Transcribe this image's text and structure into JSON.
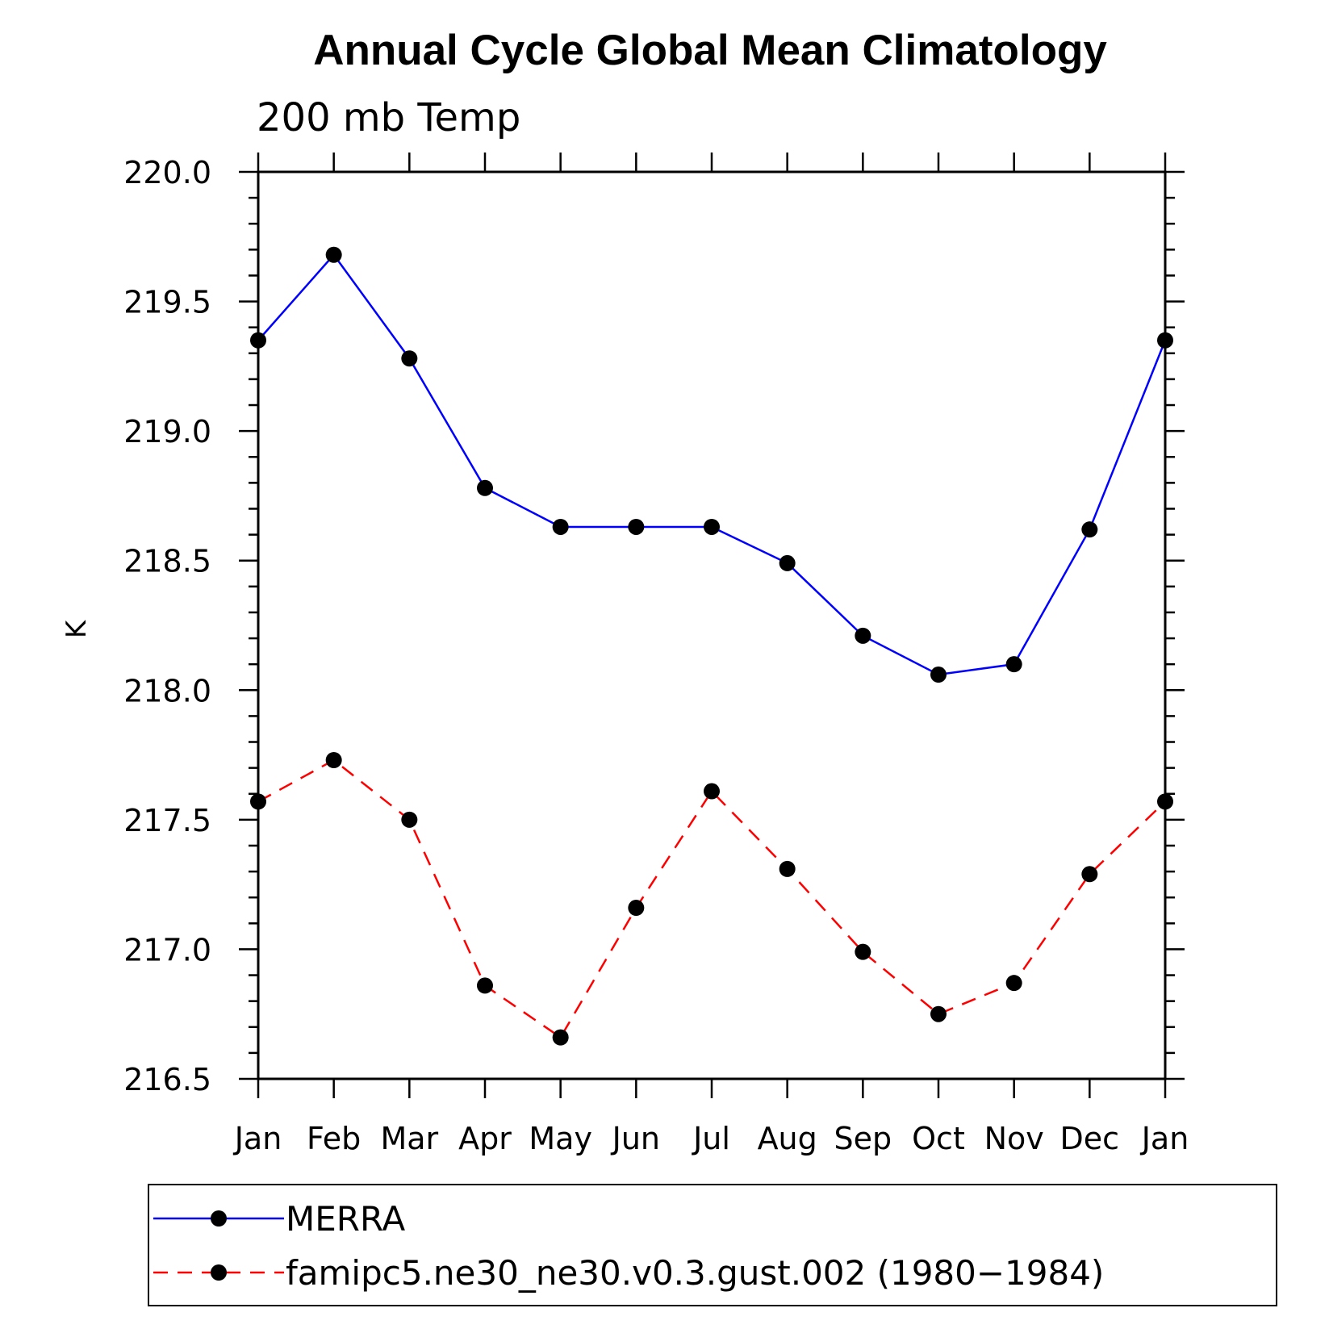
{
  "chart_data": {
    "type": "line",
    "title": "Annual Cycle Global Mean Climatology",
    "subtitle": "200 mb Temp",
    "xlabel": "",
    "ylabel": "K",
    "categories": [
      "Jan",
      "Feb",
      "Mar",
      "Apr",
      "May",
      "Jun",
      "Jul",
      "Aug",
      "Sep",
      "Oct",
      "Nov",
      "Dec",
      "Jan"
    ],
    "ylim": [
      216.5,
      220.0
    ],
    "yticks": [
      216.5,
      217.0,
      217.5,
      218.0,
      218.5,
      219.0,
      219.5,
      220.0
    ],
    "ytick_labels": [
      "216.5",
      "217.0",
      "217.5",
      "218.0",
      "218.5",
      "219.0",
      "219.5",
      "220.0"
    ],
    "series": [
      {
        "name": "MERRA",
        "color": "#0000ff",
        "style": "solid",
        "marker": "filled-circle",
        "values": [
          219.35,
          219.68,
          219.28,
          218.78,
          218.63,
          218.63,
          218.63,
          218.49,
          218.21,
          218.06,
          218.1,
          218.62,
          219.35
        ]
      },
      {
        "name": "famipc5.ne30_ne30.v0.3.gust.002 (1980−1984)",
        "color": "#ff0000",
        "style": "dashed",
        "marker": "filled-circle",
        "values": [
          217.57,
          217.73,
          217.5,
          216.86,
          216.66,
          217.16,
          217.61,
          217.31,
          216.99,
          216.75,
          216.87,
          217.29,
          217.57
        ]
      }
    ],
    "legend": {
      "placement": "bottom"
    }
  }
}
